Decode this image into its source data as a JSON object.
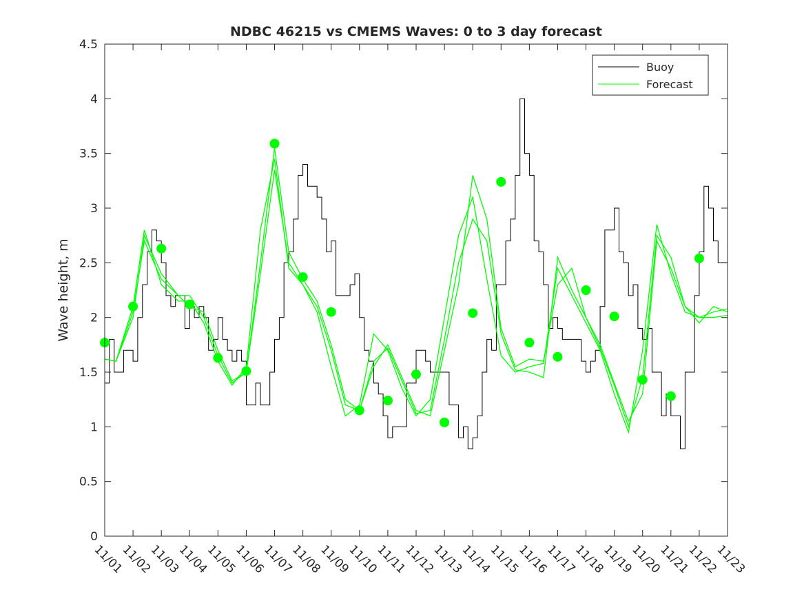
{
  "chart_data": {
    "type": "line",
    "title": "NDBC 46215 vs CMEMS Waves: 0 to 3 day forecast",
    "xlabel": "",
    "ylabel": "Wave height, m",
    "xlim": [
      0,
      22
    ],
    "ylim": [
      0,
      4.5
    ],
    "grid": false,
    "legend_position": "top-right",
    "x_tick_values": [
      0,
      1,
      2,
      3,
      4,
      5,
      6,
      7,
      8,
      9,
      10,
      11,
      12,
      13,
      14,
      15,
      16,
      17,
      18,
      19,
      20,
      21,
      22
    ],
    "x_tick_labels": [
      "11/01",
      "11/02",
      "11/03",
      "11/04",
      "11/05",
      "11/06",
      "11/07",
      "11/08",
      "11/09",
      "11/10",
      "11/11",
      "11/12",
      "11/13",
      "11/14",
      "11/15",
      "11/16",
      "11/17",
      "11/18",
      "11/19",
      "11/20",
      "11/21",
      "11/22",
      "11/23"
    ],
    "y_tick_values": [
      0,
      0.5,
      1,
      1.5,
      2,
      2.5,
      3,
      3.5,
      4,
      4.5
    ],
    "y_tick_labels": [
      "0",
      "0.5",
      "1",
      "1.5",
      "2",
      "2.5",
      "3",
      "3.5",
      "4",
      "4.5"
    ],
    "colors": {
      "buoy": "#000000",
      "forecast": "#00ff00",
      "axes": "#262626"
    },
    "legend": [
      {
        "name": "Buoy",
        "color": "#000000"
      },
      {
        "name": "Forecast",
        "color": "#00ff00"
      }
    ],
    "buoy_anchors": {
      "x": [
        0,
        0.3,
        0.6,
        1,
        1.3,
        1.5,
        1.7,
        2,
        2.3,
        2.7,
        3,
        3.5,
        4,
        4.5,
        4.8,
        5,
        5.3,
        5.6,
        6,
        6.3,
        6.6,
        6.9,
        7,
        7.1,
        7.3,
        7.6,
        7.8,
        8,
        8.3,
        8.6,
        8.8,
        9,
        9.4,
        9.8,
        10,
        10.3,
        10.6,
        10.9,
        11.1,
        11.3,
        11.6,
        11.9,
        12.2,
        12.5,
        12.8,
        13,
        13.3,
        13.6,
        13.9,
        14.1,
        14.3,
        14.5,
        14.7,
        14.9,
        15.2,
        15.5,
        15.8,
        16.1,
        16.4,
        16.7,
        17,
        17.3,
        17.5,
        17.7,
        17.9,
        18.1,
        18.4,
        18.7,
        19,
        19.3,
        19.6,
        19.9,
        20.3,
        20.6,
        20.9,
        21,
        21.1,
        21.3,
        21.5,
        21.7,
        21.9,
        22
      ],
      "y": [
        1.6,
        1.6,
        1.6,
        1.7,
        2.1,
        2.6,
        2.8,
        2.4,
        2.2,
        2.1,
        2.0,
        1.9,
        1.8,
        1.6,
        1.4,
        1.3,
        1.2,
        1.3,
        1.8,
        2.3,
        2.7,
        3.3,
        3.6,
        3.4,
        3.2,
        3.0,
        2.8,
        2.5,
        2.3,
        2.2,
        2.3,
        2.0,
        1.6,
        1.2,
        1.0,
        0.95,
        1.2,
        1.5,
        1.65,
        1.6,
        1.5,
        1.35,
        1.2,
        1.0,
        0.9,
        0.95,
        1.3,
        1.8,
        2.3,
        2.6,
        3.0,
        3.5,
        3.9,
        3.5,
        2.8,
        2.3,
        1.9,
        1.65,
        1.65,
        1.7,
        1.7,
        1.8,
        2.3,
        2.8,
        3.0,
        2.7,
        2.4,
        2.1,
        1.9,
        1.65,
        1.4,
        1.1,
        0.9,
        1.5,
        2.1,
        2.6,
        3.1,
        3.2,
        2.8,
        2.6,
        2.4,
        2.3
      ]
    },
    "forecast_series": [
      {
        "name": "Forecast",
        "x": [
          0,
          0.4,
          1,
          1.4,
          2,
          2.6,
          3,
          3.5,
          4,
          4.5,
          5,
          5.5,
          6,
          6.5,
          7,
          7.5,
          8,
          8.5,
          9,
          9.5,
          10,
          10.5,
          11,
          11.5,
          12,
          12.5,
          13,
          13.5,
          14,
          14.5,
          15,
          15.5,
          16,
          16.5,
          17,
          17.5,
          18,
          18.5,
          19,
          19.5,
          20,
          20.5,
          21,
          21.5,
          22
        ],
        "y": [
          1.62,
          1.6,
          2.05,
          2.7,
          2.35,
          2.2,
          2.2,
          2.0,
          1.65,
          1.4,
          1.5,
          2.5,
          3.55,
          2.6,
          2.35,
          2.15,
          1.75,
          1.25,
          1.15,
          1.55,
          1.75,
          1.45,
          1.15,
          1.1,
          1.7,
          2.3,
          3.3,
          2.9,
          1.9,
          1.55,
          1.62,
          1.6,
          2.3,
          2.45,
          2.0,
          1.75,
          1.4,
          1.05,
          1.3,
          2.7,
          2.45,
          2.1,
          1.95,
          2.1,
          2.05
        ]
      },
      {
        "name": "Forecast",
        "x": [
          0,
          0.4,
          1,
          1.4,
          2,
          2.6,
          3,
          3.5,
          4,
          4.5,
          5,
          5.5,
          6,
          6.5,
          7,
          7.5,
          8,
          8.5,
          9,
          9.5,
          10,
          10.5,
          11,
          11.5,
          12,
          12.5,
          13,
          13.5,
          14,
          14.5,
          15,
          15.5,
          16,
          16.5,
          17,
          17.5,
          18,
          18.5,
          19,
          19.5,
          20,
          20.5,
          21,
          21.5,
          22
        ],
        "y": [
          1.62,
          1.6,
          2.1,
          2.8,
          2.3,
          2.15,
          2.15,
          1.95,
          1.6,
          1.38,
          1.55,
          2.8,
          3.45,
          2.45,
          2.3,
          2.05,
          1.55,
          1.1,
          1.2,
          1.85,
          1.7,
          1.35,
          1.1,
          1.25,
          2.0,
          2.75,
          3.1,
          2.35,
          1.65,
          1.5,
          1.55,
          1.58,
          2.45,
          2.2,
          1.95,
          1.7,
          1.3,
          0.95,
          1.7,
          2.85,
          2.4,
          2.05,
          2.0,
          2.05,
          2.08
        ]
      },
      {
        "name": "Forecast",
        "x": [
          0,
          0.4,
          1,
          1.4,
          2,
          2.6,
          3,
          3.5,
          4,
          4.5,
          5,
          5.5,
          6,
          6.5,
          7,
          7.5,
          8,
          8.5,
          9,
          9.5,
          10,
          10.5,
          11,
          11.5,
          12,
          12.5,
          13,
          13.5,
          14,
          14.5,
          15,
          15.5,
          16,
          16.5,
          17,
          17.5,
          18,
          18.5,
          19,
          19.5,
          20,
          20.5,
          21,
          21.5,
          22
        ],
        "y": [
          1.62,
          1.6,
          2.0,
          2.75,
          2.4,
          2.2,
          2.1,
          2.05,
          1.7,
          1.42,
          1.5,
          2.4,
          3.35,
          2.5,
          2.3,
          2.1,
          1.7,
          1.2,
          1.15,
          1.6,
          1.72,
          1.42,
          1.12,
          1.15,
          1.8,
          2.5,
          2.9,
          2.7,
          1.85,
          1.52,
          1.5,
          1.45,
          2.55,
          2.25,
          2.0,
          1.72,
          1.38,
          1.0,
          1.45,
          2.75,
          2.55,
          2.1,
          2.0,
          2.0,
          2.02
        ]
      }
    ],
    "forecast_markers": {
      "x": [
        0,
        1,
        2,
        3,
        4,
        5,
        6,
        7,
        8,
        9,
        10,
        11,
        12,
        13,
        14,
        15,
        16,
        17,
        18,
        19,
        20,
        21
      ],
      "y": [
        1.77,
        2.1,
        2.63,
        2.12,
        1.63,
        1.51,
        3.59,
        2.37,
        2.05,
        1.15,
        1.24,
        1.48,
        1.04,
        2.04,
        3.24,
        1.77,
        1.64,
        2.25,
        2.01,
        1.43,
        1.28,
        2.54
      ]
    }
  }
}
